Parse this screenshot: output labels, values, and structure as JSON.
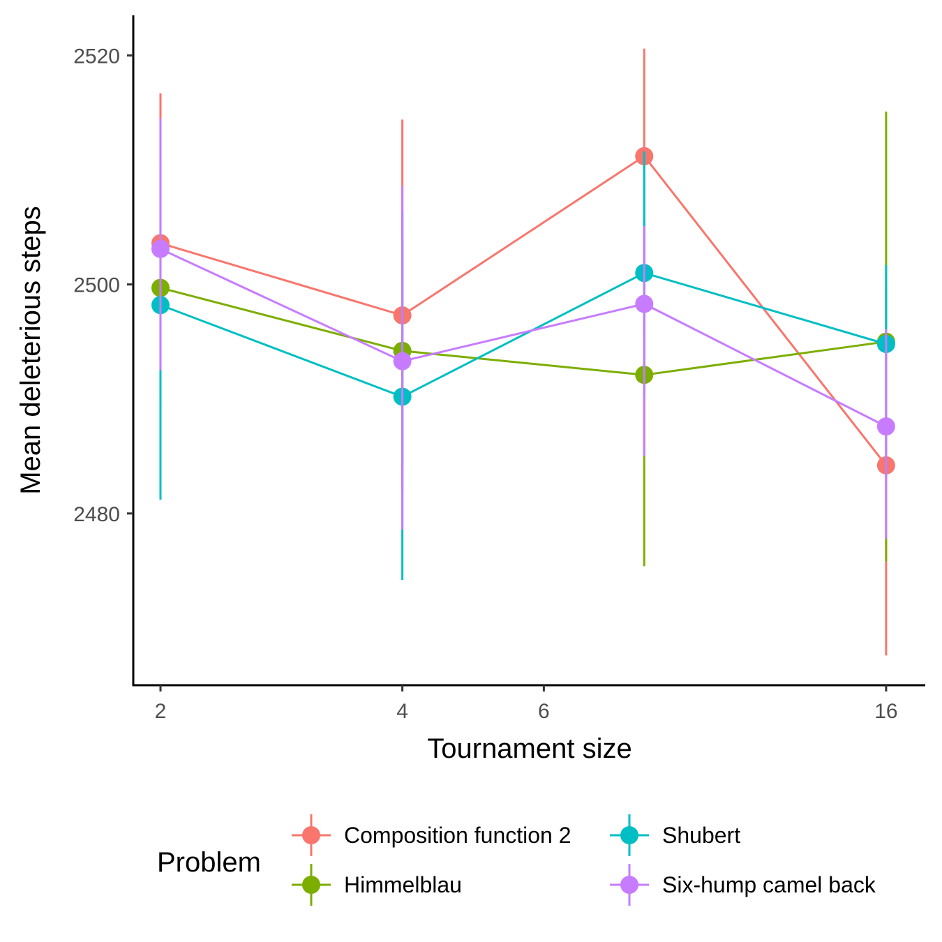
{
  "chart_data": {
    "type": "line",
    "xlabel": "Tournament size",
    "ylabel": "Mean deleterious steps",
    "x_scale": "log2",
    "xlim": [
      1.85,
      17.9
    ],
    "ylim": [
      2465,
      2523.5
    ],
    "x_ticks": [
      2,
      4,
      6,
      16
    ],
    "x_tick_labels": [
      "2",
      "4",
      "6",
      "16"
    ],
    "y_ticks": [
      2480,
      2500,
      2520
    ],
    "y_tick_labels": [
      "2480",
      "2500",
      "2520"
    ],
    "grid": false,
    "error_bars": true,
    "legend": {
      "title": "Problem",
      "position": "bottom"
    },
    "series": [
      {
        "name": "Composition function 2",
        "color": "#F8766D",
        "points": [
          {
            "x": 2,
            "y": 2503.6,
            "lo": 2490.2,
            "hi": 2516.7
          },
          {
            "x": 4,
            "y": 2497.3,
            "lo": 2481.8,
            "hi": 2514.4
          },
          {
            "x": 8,
            "y": 2511.2,
            "lo": 2495.5,
            "hi": 2520.6
          },
          {
            "x": 16,
            "y": 2484.2,
            "lo": 2467.6,
            "hi": 2500.0
          }
        ]
      },
      {
        "name": "Himmelblau",
        "color": "#7CAE00",
        "points": [
          {
            "x": 2,
            "y": 2499.7,
            "lo": 2489.6,
            "hi": 2509.0
          },
          {
            "x": 4,
            "y": 2494.2,
            "lo": 2484.1,
            "hi": 2504.1
          },
          {
            "x": 8,
            "y": 2492.1,
            "lo": 2475.4,
            "hi": 2505.6
          },
          {
            "x": 16,
            "y": 2495.0,
            "lo": 2475.8,
            "hi": 2515.1
          }
        ]
      },
      {
        "name": "Shubert",
        "color": "#00BFC4",
        "points": [
          {
            "x": 2,
            "y": 2498.2,
            "lo": 2481.2,
            "hi": 2510.7
          },
          {
            "x": 4,
            "y": 2490.2,
            "lo": 2474.2,
            "hi": 2506.3
          },
          {
            "x": 8,
            "y": 2501.0,
            "lo": 2490.1,
            "hi": 2511.6
          },
          {
            "x": 16,
            "y": 2494.8,
            "lo": 2483.4,
            "hi": 2501.7
          }
        ]
      },
      {
        "name": "Six-hump camel back",
        "color": "#C77CFF",
        "points": [
          {
            "x": 2,
            "y": 2503.1,
            "lo": 2492.5,
            "hi": 2514.5
          },
          {
            "x": 4,
            "y": 2493.3,
            "lo": 2478.6,
            "hi": 2508.6
          },
          {
            "x": 8,
            "y": 2498.3,
            "lo": 2485.0,
            "hi": 2505.1
          },
          {
            "x": 16,
            "y": 2487.6,
            "lo": 2477.8,
            "hi": 2496.1
          }
        ]
      }
    ]
  }
}
